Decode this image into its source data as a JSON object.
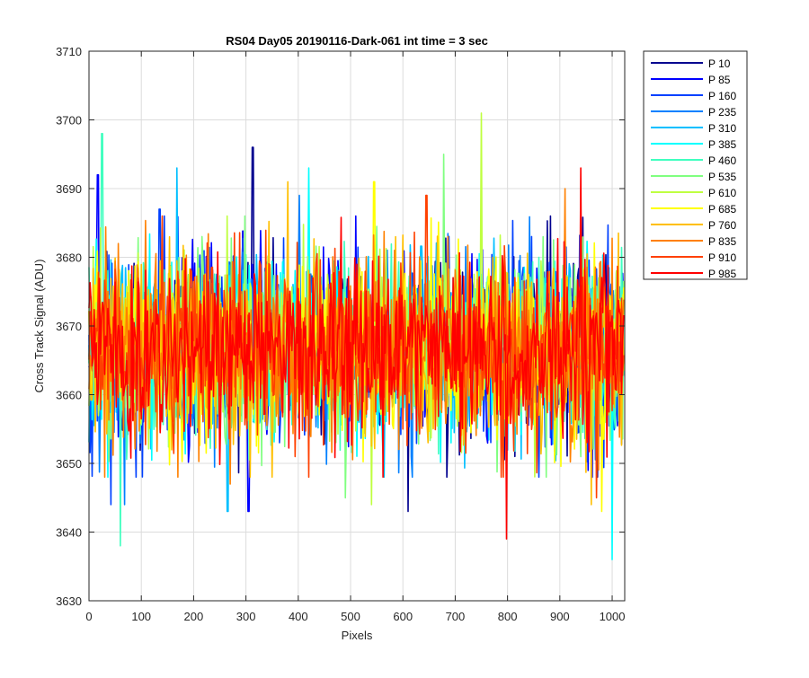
{
  "chart_data": {
    "type": "line",
    "title": "RS04 Day05 20190116-Dark-061 int time = 3 sec",
    "xlabel": "Pixels",
    "ylabel": "Cross Track Signal (ADU)",
    "xlim": [
      0,
      1024
    ],
    "ylim": [
      3630,
      3710
    ],
    "xticks": [
      0,
      100,
      200,
      300,
      400,
      500,
      600,
      700,
      800,
      900,
      1000
    ],
    "yticks": [
      3630,
      3640,
      3650,
      3660,
      3670,
      3680,
      3690,
      3700,
      3710
    ],
    "grid": true,
    "legend_position": "outside-right",
    "x_points": "0 to 1023, one point per pixel",
    "series_mean_approx": 3667,
    "series_noise_std_approx": 6.5,
    "series": [
      {
        "name": "P 10",
        "color": "#00008f",
        "peak": {
          "x": 313,
          "y": 3696
        },
        "trough": {
          "x": 610,
          "y": 3643
        }
      },
      {
        "name": "P 85",
        "color": "#0000ff",
        "peak": {
          "x": 17,
          "y": 3692
        },
        "trough": {
          "x": 305,
          "y": 3643
        }
      },
      {
        "name": "P 160",
        "color": "#0040ff",
        "peak": {
          "x": 135,
          "y": 3687
        },
        "trough": {
          "x": 42,
          "y": 3644
        }
      },
      {
        "name": "P 235",
        "color": "#0080ff",
        "peak": {
          "x": 402,
          "y": 3689
        },
        "trough": {
          "x": 68,
          "y": 3644
        }
      },
      {
        "name": "P 310",
        "color": "#00bfff",
        "peak": {
          "x": 168,
          "y": 3693
        },
        "trough": {
          "x": 265,
          "y": 3643
        }
      },
      {
        "name": "P 385",
        "color": "#00ffff",
        "peak": {
          "x": 420,
          "y": 3693
        },
        "trough": {
          "x": 1000,
          "y": 3636
        }
      },
      {
        "name": "P 460",
        "color": "#40ffbf",
        "peak": {
          "x": 25,
          "y": 3698
        },
        "trough": {
          "x": 60,
          "y": 3638
        }
      },
      {
        "name": "P 535",
        "color": "#80ff80",
        "peak": {
          "x": 678,
          "y": 3695
        },
        "trough": {
          "x": 490,
          "y": 3645
        }
      },
      {
        "name": "P 610",
        "color": "#bfff40",
        "peak": {
          "x": 750,
          "y": 3701
        },
        "trough": {
          "x": 540,
          "y": 3644
        }
      },
      {
        "name": "P 685",
        "color": "#ffff00",
        "peak": {
          "x": 545,
          "y": 3691
        },
        "trough": {
          "x": 980,
          "y": 3643
        }
      },
      {
        "name": "P 760",
        "color": "#ffbf00",
        "peak": {
          "x": 380,
          "y": 3691
        },
        "trough": {
          "x": 960,
          "y": 3644
        }
      },
      {
        "name": "P 835",
        "color": "#ff8000",
        "peak": {
          "x": 910,
          "y": 3690
        },
        "trough": {
          "x": 270,
          "y": 3647
        }
      },
      {
        "name": "P 910",
        "color": "#ff4000",
        "peak": {
          "x": 645,
          "y": 3689
        },
        "trough": {
          "x": 970,
          "y": 3645
        }
      },
      {
        "name": "P 985",
        "color": "#ff0000",
        "peak": {
          "x": 940,
          "y": 3693
        },
        "trough": {
          "x": 798,
          "y": 3639
        }
      }
    ]
  }
}
